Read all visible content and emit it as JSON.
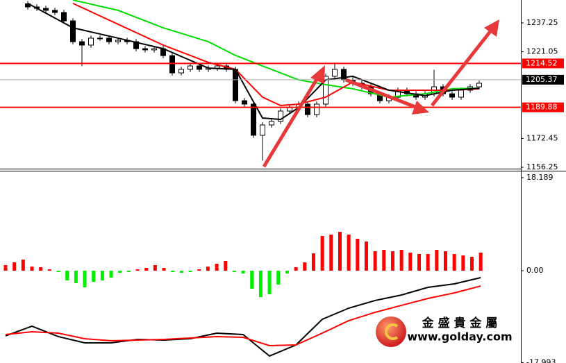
{
  "chart_data": [
    {
      "type": "candlestick",
      "ylim": [
        1154.7,
        1250.1
      ],
      "yticks": [
        1237.25,
        1221.05,
        1172.45,
        1156.25
      ],
      "up_color": "#ffffff",
      "down_color": "#000000",
      "open": [
        1248.0,
        1246.2,
        1245.4,
        1244.3,
        1243.1,
        1238.4,
        1226.7,
        1224.8,
        1228.7,
        1228.7,
        1226.7,
        1227.5,
        1226.7,
        1222.8,
        1222.1,
        1222.8,
        1218.9,
        1209.2,
        1211.2,
        1213.1,
        1211.2,
        1211.9,
        1213.1,
        1211.2,
        1193.6,
        1191.7,
        1174.2,
        1180.0,
        1182.0,
        1187.8,
        1189.7,
        1191.7,
        1185.8,
        1191.7,
        1207.3,
        1211.2,
        1205.3,
        1203.4,
        1201.4,
        1197.5,
        1193.6,
        1195.6,
        1199.5,
        1197.5,
        1195.6,
        1197.5,
        1201.4,
        1197.5,
        1195.6,
        1199.5,
        1201.4
      ],
      "high": [
        1249.5,
        1247.7,
        1246.9,
        1245.8,
        1244.6,
        1239.9,
        1228.2,
        1230.2,
        1230.2,
        1230.2,
        1229.0,
        1229.0,
        1228.2,
        1224.3,
        1224.3,
        1224.3,
        1220.4,
        1212.7,
        1214.6,
        1214.6,
        1213.4,
        1214.6,
        1214.6,
        1212.7,
        1195.1,
        1193.2,
        1181.5,
        1183.5,
        1189.3,
        1191.2,
        1193.2,
        1193.2,
        1193.2,
        1208.8,
        1215.0,
        1212.7,
        1206.8,
        1204.9,
        1202.9,
        1199.0,
        1197.1,
        1201.0,
        1201.0,
        1199.0,
        1199.0,
        1211.0,
        1202.9,
        1199.0,
        1201.0,
        1202.9,
        1204.9
      ],
      "low": [
        1244.7,
        1243.9,
        1242.8,
        1241.6,
        1236.9,
        1225.2,
        1213.0,
        1223.3,
        1227.2,
        1225.2,
        1225.2,
        1225.2,
        1221.3,
        1220.6,
        1220.6,
        1217.4,
        1207.7,
        1207.7,
        1209.7,
        1209.7,
        1209.7,
        1210.4,
        1209.7,
        1192.1,
        1190.2,
        1172.7,
        1160.0,
        1178.5,
        1180.5,
        1186.3,
        1188.2,
        1184.3,
        1184.3,
        1190.2,
        1205.8,
        1203.8,
        1201.9,
        1199.9,
        1196.0,
        1192.1,
        1192.1,
        1194.1,
        1196.0,
        1194.1,
        1194.1,
        1196.0,
        1196.0,
        1194.1,
        1194.1,
        1198.0,
        1199.9
      ],
      "close": [
        1246.2,
        1245.4,
        1244.3,
        1243.1,
        1238.4,
        1226.7,
        1224.8,
        1228.7,
        1228.7,
        1226.7,
        1227.5,
        1226.7,
        1222.8,
        1222.1,
        1222.8,
        1218.9,
        1209.2,
        1211.2,
        1213.1,
        1211.2,
        1211.9,
        1213.1,
        1211.2,
        1193.6,
        1191.7,
        1174.2,
        1180.0,
        1182.0,
        1187.8,
        1189.7,
        1191.7,
        1185.8,
        1191.7,
        1207.3,
        1211.2,
        1205.3,
        1203.4,
        1201.4,
        1197.5,
        1193.6,
        1195.6,
        1199.5,
        1197.5,
        1195.6,
        1197.5,
        1201.4,
        1197.5,
        1195.6,
        1199.5,
        1201.4,
        1203.4
      ],
      "series": [
        {
          "color": "#00dd00",
          "x": [
            0,
            5,
            10,
            15,
            20,
            23,
            26,
            28,
            30,
            33,
            36,
            40,
            44,
            47,
            50
          ],
          "values": [
            null,
            1250.1,
            1244.3,
            1234.5,
            1226.7,
            1219.0,
            1213.1,
            1209.2,
            1205.3,
            1202.6,
            1200.3,
            1195.6,
            1197.5,
            1200.3,
            1200.6
          ]
        },
        {
          "color": "#ff0000",
          "x": [
            0,
            5,
            10,
            15,
            20,
            23,
            26,
            28,
            30,
            33,
            36,
            40,
            44,
            47,
            50
          ],
          "values": [
            null,
            1248.2,
            1236.5,
            1224.8,
            1215.1,
            1211.2,
            1195.6,
            1190.9,
            1191.7,
            1195.6,
            1204.1,
            1199.5,
            1199.5,
            1199.5,
            1200.3
          ]
        },
        {
          "color": "#000000",
          "x": [
            0,
            5,
            10,
            15,
            20,
            23,
            26,
            28,
            30,
            33,
            36,
            40,
            44,
            47,
            50
          ],
          "values": [
            1248.2,
            1234.5,
            1228.7,
            1222.8,
            1211.9,
            1211.2,
            1183.9,
            1183.1,
            1189.7,
            1205.3,
            1207.3,
            1199.5,
            1196.4,
            1199.5,
            1200.6
          ]
        }
      ],
      "levels": [
        {
          "value": 1214.52,
          "color": "#ff0000"
        },
        {
          "value": 1205.37,
          "color": "#000000"
        },
        {
          "value": 1189.88,
          "color": "#ff0000"
        }
      ]
    },
    {
      "type": "macd",
      "ylim": [
        -18.05,
        19.0
      ],
      "yticks": [
        18.189,
        {
          "value": 0,
          "label": "0.00"
        },
        -17.993
      ],
      "up_color": "#ff0000",
      "down_color": "#00ee00",
      "values": [
        1.09,
        1.63,
        2.17,
        0.81,
        0.68,
        0.27,
        -0.27,
        -1.9,
        -2.44,
        -3.26,
        -2.17,
        -1.9,
        -1.36,
        -0.41,
        -0.27,
        0.27,
        0.54,
        1.09,
        0.54,
        -0.27,
        -0.41,
        -0.27,
        0.27,
        0.81,
        1.36,
        1.9,
        -0.27,
        -0.54,
        -3.53,
        -5.16,
        -4.61,
        -2.71,
        -0.54,
        0.68,
        1.63,
        3.39,
        6.78,
        7.06,
        7.6,
        7.06,
        6.24,
        5.7,
        3.8,
        4.07,
        3.8,
        4.07,
        3.53,
        3.26,
        3.26,
        4.07,
        3.8,
        3.26,
        2.99,
        2.71,
        3.53
      ],
      "series": [
        {
          "color": "#000000",
          "x": [
            0,
            3,
            6,
            9,
            12,
            15,
            18,
            21,
            24,
            27,
            30,
            33,
            36,
            39,
            42,
            45,
            48,
            51,
            54
          ],
          "values": [
            -12.75,
            -10.85,
            -12.89,
            -14.11,
            -14.11,
            -13.43,
            -13.57,
            -13.3,
            -12.21,
            -12.48,
            -16.69,
            -14.52,
            -9.5,
            -7.33,
            -5.83,
            -4.75,
            -3.26,
            -2.58,
            -1.36
          ]
        },
        {
          "color": "#ff0000",
          "x": [
            0,
            3,
            6,
            9,
            12,
            15,
            18,
            21,
            24,
            27,
            30,
            33,
            36,
            39,
            42,
            45,
            48,
            51,
            54
          ],
          "values": [
            -12.48,
            -11.94,
            -12.21,
            -13.3,
            -13.7,
            -13.57,
            -13.43,
            -13.16,
            -12.89,
            -13.03,
            -14.65,
            -14.52,
            -12.21,
            -9.77,
            -8.14,
            -6.78,
            -5.43,
            -4.34,
            -2.99
          ]
        }
      ]
    }
  ],
  "watermark": {
    "name": "金 盛 貴 金 屬",
    "url": "www.golday.com"
  }
}
